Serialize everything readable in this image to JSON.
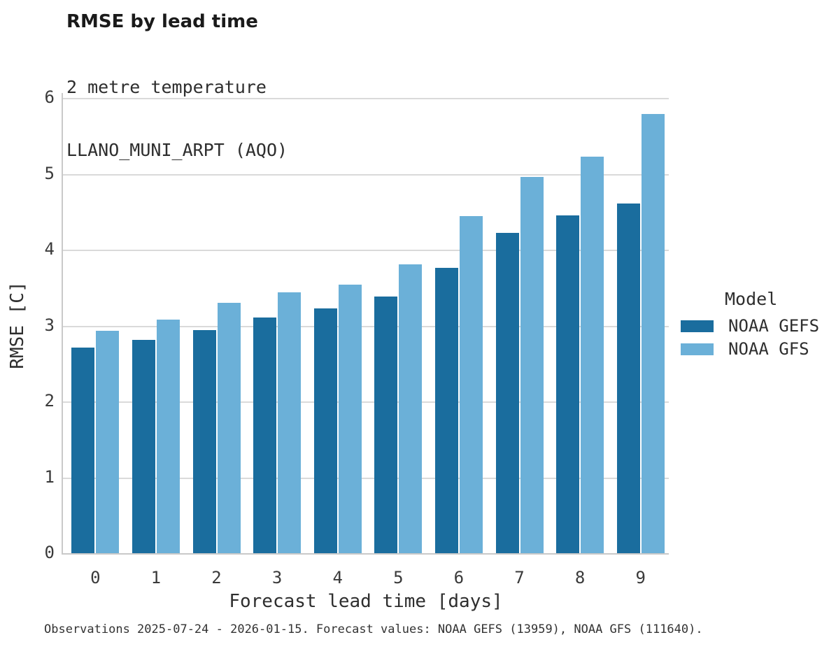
{
  "header": {
    "title": "RMSE by lead time",
    "subtitle_line1": "2 metre temperature",
    "subtitle_line2": "LLANO_MUNI_ARPT (AQO)"
  },
  "chart_data": {
    "type": "bar",
    "title": "RMSE by lead time",
    "subtitle": [
      "2 metre temperature",
      "LLANO_MUNI_ARPT (AQO)"
    ],
    "categories": [
      "0",
      "1",
      "2",
      "3",
      "4",
      "5",
      "6",
      "7",
      "8",
      "9"
    ],
    "series": [
      {
        "name": "NOAA GEFS",
        "color": "#1a6d9e",
        "values": [
          2.71,
          2.81,
          2.94,
          3.11,
          3.23,
          3.38,
          3.76,
          4.22,
          4.45,
          4.61
        ]
      },
      {
        "name": "NOAA GFS",
        "color": "#6bb0d8",
        "values": [
          2.93,
          3.08,
          3.3,
          3.44,
          3.54,
          3.81,
          4.44,
          4.96,
          5.23,
          5.79
        ]
      }
    ],
    "xlabel": "Forecast lead time [days]",
    "ylabel": "RMSE [C]",
    "ylim": [
      0,
      6.06
    ],
    "yticks": [
      0,
      1,
      2,
      3,
      4,
      5,
      6
    ],
    "grid": true,
    "legend_title": "Model",
    "legend_position": "right-outside"
  },
  "legend": {
    "title": "Model",
    "items": [
      {
        "label": "NOAA GEFS",
        "color": "#1a6d9e"
      },
      {
        "label": "NOAA GFS",
        "color": "#6bb0d8"
      }
    ]
  },
  "footer": {
    "note": "Observations 2025-07-24 - 2026-01-15. Forecast values: NOAA GEFS (13959), NOAA GFS (111640)."
  },
  "colors": {
    "gefs_bar": "#1a6d9e",
    "gfs_bar": "#6bb0d8",
    "gridline": "#dadada",
    "spine": "#c9c9c9",
    "title_text": "#1a1a1a",
    "tick_text": "#3a3a3a"
  }
}
